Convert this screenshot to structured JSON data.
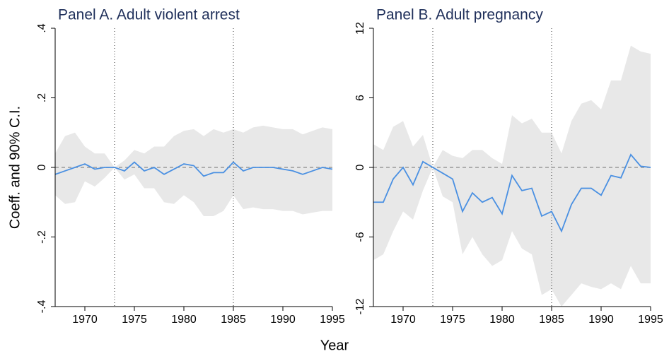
{
  "xlabel": "Year",
  "chart_data": [
    {
      "type": "line",
      "title": "Panel A. Adult violent arrest",
      "ylabel": "Coeff. and 90% C.I.",
      "x": [
        1967,
        1968,
        1969,
        1970,
        1971,
        1972,
        1973,
        1974,
        1975,
        1976,
        1977,
        1978,
        1979,
        1980,
        1981,
        1982,
        1983,
        1984,
        1985,
        1986,
        1987,
        1988,
        1989,
        1990,
        1991,
        1992,
        1993,
        1994,
        1995
      ],
      "values": [
        -0.02,
        -0.01,
        0,
        0.01,
        -0.005,
        0,
        0,
        -0.01,
        0.015,
        -0.01,
        0,
        -0.02,
        -0.005,
        0.01,
        0.005,
        -0.025,
        -0.015,
        -0.015,
        0.015,
        -0.01,
        0,
        0,
        0,
        -0.005,
        -0.01,
        -0.02,
        -0.01,
        0,
        -0.005
      ],
      "upper": [
        0.04,
        0.09,
        0.1,
        0.06,
        0.04,
        0.04,
        0,
        0.02,
        0.05,
        0.04,
        0.06,
        0.06,
        0.09,
        0.105,
        0.11,
        0.09,
        0.11,
        0.1,
        0.11,
        0.1,
        0.115,
        0.12,
        0.115,
        0.11,
        0.11,
        0.095,
        0.105,
        0.115,
        0.11
      ],
      "lower": [
        -0.08,
        -0.105,
        -0.1,
        -0.04,
        -0.055,
        -0.03,
        0,
        -0.035,
        -0.02,
        -0.06,
        -0.06,
        -0.1,
        -0.105,
        -0.08,
        -0.1,
        -0.14,
        -0.14,
        -0.125,
        -0.08,
        -0.12,
        -0.115,
        -0.12,
        -0.12,
        -0.125,
        -0.125,
        -0.135,
        -0.13,
        -0.125,
        -0.125
      ],
      "color": "#4a90e2",
      "band_color": "#e8e8e8",
      "xlim": [
        1967,
        1995
      ],
      "xticks": [
        1970,
        1975,
        1980,
        1985,
        1990,
        1995
      ],
      "ylim": [
        -0.4,
        0.4
      ],
      "yticks": [
        {
          "value": -0.4,
          "label": "-.4"
        },
        {
          "value": -0.2,
          "label": "-.2"
        },
        0,
        {
          "value": 0.2,
          "label": ".2"
        },
        {
          "value": 0.4,
          "label": ".4"
        }
      ],
      "hline": 0,
      "vlines": [
        1973,
        1985
      ]
    },
    {
      "type": "line",
      "title": "Panel B. Adult pregnancy",
      "x": [
        1967,
        1968,
        1969,
        1970,
        1971,
        1972,
        1973,
        1974,
        1975,
        1976,
        1977,
        1978,
        1979,
        1980,
        1981,
        1982,
        1983,
        1984,
        1985,
        1986,
        1987,
        1988,
        1989,
        1990,
        1991,
        1992,
        1993,
        1994,
        1995
      ],
      "values": [
        -3,
        -3,
        -1,
        0,
        -1.5,
        0.5,
        0,
        -0.5,
        -1,
        -3.8,
        -2.2,
        -3,
        -2.6,
        -4,
        -0.7,
        -2,
        -1.8,
        -4.2,
        -3.8,
        -5.5,
        -3.2,
        -1.8,
        -1.8,
        -2.4,
        -0.7,
        -0.9,
        1.1,
        0.1,
        0
      ],
      "upper": [
        2,
        1.5,
        3.5,
        4,
        1.8,
        2.8,
        0,
        1.5,
        1,
        0.8,
        1.5,
        1.5,
        0.8,
        0.3,
        4.5,
        3.8,
        4.2,
        3,
        3,
        1.2,
        4,
        5.5,
        5.8,
        5,
        7.5,
        7.5,
        10.5,
        10,
        9.8
      ],
      "lower": [
        -8,
        -7.5,
        -5.5,
        -3.8,
        -4.5,
        -2,
        0,
        -2.5,
        -3,
        -7.5,
        -6,
        -7.5,
        -8.5,
        -8,
        -5.5,
        -7,
        -7.5,
        -11,
        -10.5,
        -12,
        -11,
        -10,
        -10.3,
        -10.5,
        -10,
        -10.5,
        -8.5,
        -10,
        -10
      ],
      "color": "#4a90e2",
      "band_color": "#e8e8e8",
      "xlim": [
        1967,
        1995
      ],
      "xticks": [
        1970,
        1975,
        1980,
        1985,
        1990,
        1995
      ],
      "ylim": [
        -12,
        12
      ],
      "yticks": [
        -12,
        -6,
        0,
        6,
        12
      ],
      "hline": 0,
      "vlines": [
        1973,
        1985
      ]
    }
  ]
}
